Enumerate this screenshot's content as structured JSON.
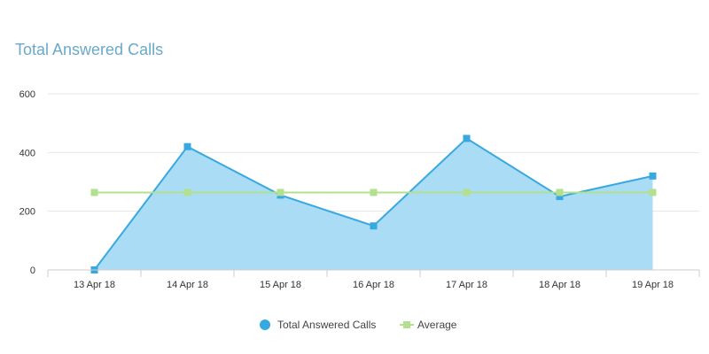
{
  "chart_data": {
    "type": "area",
    "title": "Total Answered Calls",
    "categories": [
      "13 Apr 18",
      "14 Apr 18",
      "15 Apr 18",
      "16 Apr 18",
      "17 Apr 18",
      "18 Apr 18",
      "19 Apr 18"
    ],
    "series": [
      {
        "name": "Total Answered Calls",
        "type": "area",
        "values": [
          0,
          420,
          255,
          150,
          448,
          250,
          320
        ],
        "color": "#38a9e0",
        "fill": "#aadcf5"
      },
      {
        "name": "Average",
        "type": "line",
        "values": [
          264,
          264,
          264,
          264,
          264,
          264,
          264
        ],
        "color": "#b3e08f"
      }
    ],
    "y_ticks": [
      "0",
      "200",
      "400",
      "600"
    ],
    "ylim": [
      0,
      600
    ],
    "grid": true,
    "legend_position": "bottom-center"
  }
}
